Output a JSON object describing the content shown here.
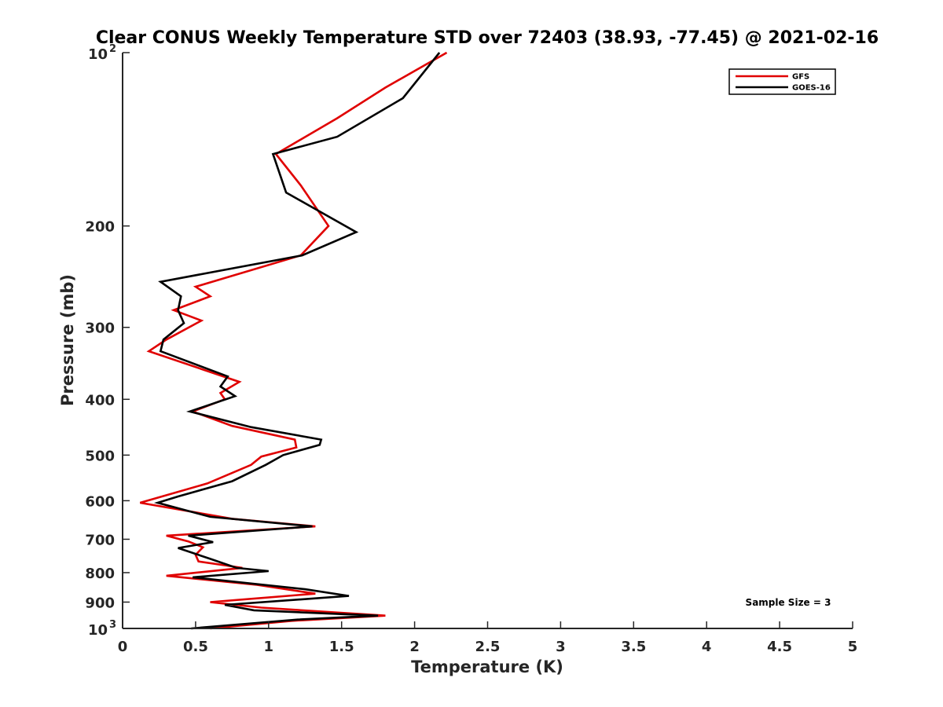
{
  "chart_data": {
    "type": "line",
    "title": "Clear CONUS Weekly Temperature STD over 72403 (38.93, -77.45) @ 2021-02-16",
    "xlabel": "Temperature (K)",
    "ylabel": "Pressure (mb)",
    "xlim": [
      0,
      5
    ],
    "ylim": [
      1000,
      100
    ],
    "y_scale": "log",
    "y_reversed": true,
    "grid": false,
    "legend_position": "top-right",
    "x_ticks": [
      0,
      0.5,
      1,
      1.5,
      2,
      2.5,
      3,
      3.5,
      4,
      4.5,
      5
    ],
    "x_tick_labels": [
      "0",
      "0.5",
      "1",
      "1.5",
      "2",
      "2.5",
      "3",
      "3.5",
      "4",
      "4.5",
      "5"
    ],
    "y_ticks": [
      {
        "value": 100,
        "base": "10",
        "exp": "2"
      },
      {
        "value": 200,
        "label": "200"
      },
      {
        "value": 300,
        "label": "300"
      },
      {
        "value": 400,
        "label": "400"
      },
      {
        "value": 500,
        "label": "500"
      },
      {
        "value": 600,
        "label": "600"
      },
      {
        "value": 700,
        "label": "700"
      },
      {
        "value": 800,
        "label": "800"
      },
      {
        "value": 900,
        "label": "900"
      },
      {
        "value": 1000,
        "base": "10",
        "exp": "3"
      }
    ],
    "annotation": "Sample Size = 3",
    "series": [
      {
        "name": "GFS",
        "color": "#e00000",
        "points": [
          [
            2.22,
            100
          ],
          [
            1.8,
            115
          ],
          [
            1.47,
            130
          ],
          [
            1.05,
            150
          ],
          [
            1.22,
            170
          ],
          [
            1.41,
            200
          ],
          [
            1.22,
            225
          ],
          [
            0.5,
            255
          ],
          [
            0.6,
            265
          ],
          [
            0.35,
            280
          ],
          [
            0.54,
            292
          ],
          [
            0.3,
            315
          ],
          [
            0.18,
            330
          ],
          [
            0.8,
            373
          ],
          [
            0.67,
            390
          ],
          [
            0.7,
            400
          ],
          [
            0.48,
            420
          ],
          [
            0.75,
            445
          ],
          [
            1.18,
            470
          ],
          [
            1.19,
            485
          ],
          [
            0.95,
            503
          ],
          [
            0.88,
            520
          ],
          [
            0.58,
            560
          ],
          [
            0.12,
            605
          ],
          [
            0.75,
            645
          ],
          [
            1.32,
            665
          ],
          [
            0.3,
            690
          ],
          [
            0.45,
            706
          ],
          [
            0.55,
            723
          ],
          [
            0.5,
            745
          ],
          [
            0.52,
            765
          ],
          [
            0.82,
            785
          ],
          [
            0.3,
            810
          ],
          [
            0.92,
            840
          ],
          [
            1.32,
            870
          ],
          [
            0.6,
            900
          ],
          [
            0.95,
            920
          ],
          [
            1.8,
            950
          ],
          [
            1.16,
            970
          ],
          [
            0.6,
            1000
          ]
        ]
      },
      {
        "name": "GOES-16",
        "color": "#000000",
        "points": [
          [
            2.17,
            100
          ],
          [
            1.92,
            120
          ],
          [
            1.47,
            140
          ],
          [
            1.03,
            150
          ],
          [
            1.12,
            175
          ],
          [
            1.6,
            205
          ],
          [
            1.23,
            225
          ],
          [
            0.26,
            250
          ],
          [
            0.4,
            265
          ],
          [
            0.38,
            280
          ],
          [
            0.42,
            295
          ],
          [
            0.28,
            315
          ],
          [
            0.26,
            330
          ],
          [
            0.72,
            365
          ],
          [
            0.67,
            380
          ],
          [
            0.77,
            395
          ],
          [
            0.46,
            420
          ],
          [
            0.88,
            447
          ],
          [
            1.36,
            470
          ],
          [
            1.35,
            480
          ],
          [
            1.1,
            500
          ],
          [
            0.98,
            520
          ],
          [
            0.75,
            555
          ],
          [
            0.38,
            590
          ],
          [
            0.24,
            605
          ],
          [
            0.6,
            640
          ],
          [
            1.3,
            665
          ],
          [
            0.45,
            690
          ],
          [
            0.62,
            708
          ],
          [
            0.38,
            725
          ],
          [
            0.6,
            757
          ],
          [
            0.78,
            785
          ],
          [
            1.0,
            795
          ],
          [
            0.48,
            815
          ],
          [
            1.25,
            855
          ],
          [
            1.55,
            878
          ],
          [
            0.7,
            910
          ],
          [
            0.9,
            930
          ],
          [
            1.75,
            950
          ],
          [
            1.2,
            965
          ],
          [
            0.47,
            1000
          ]
        ]
      }
    ]
  }
}
